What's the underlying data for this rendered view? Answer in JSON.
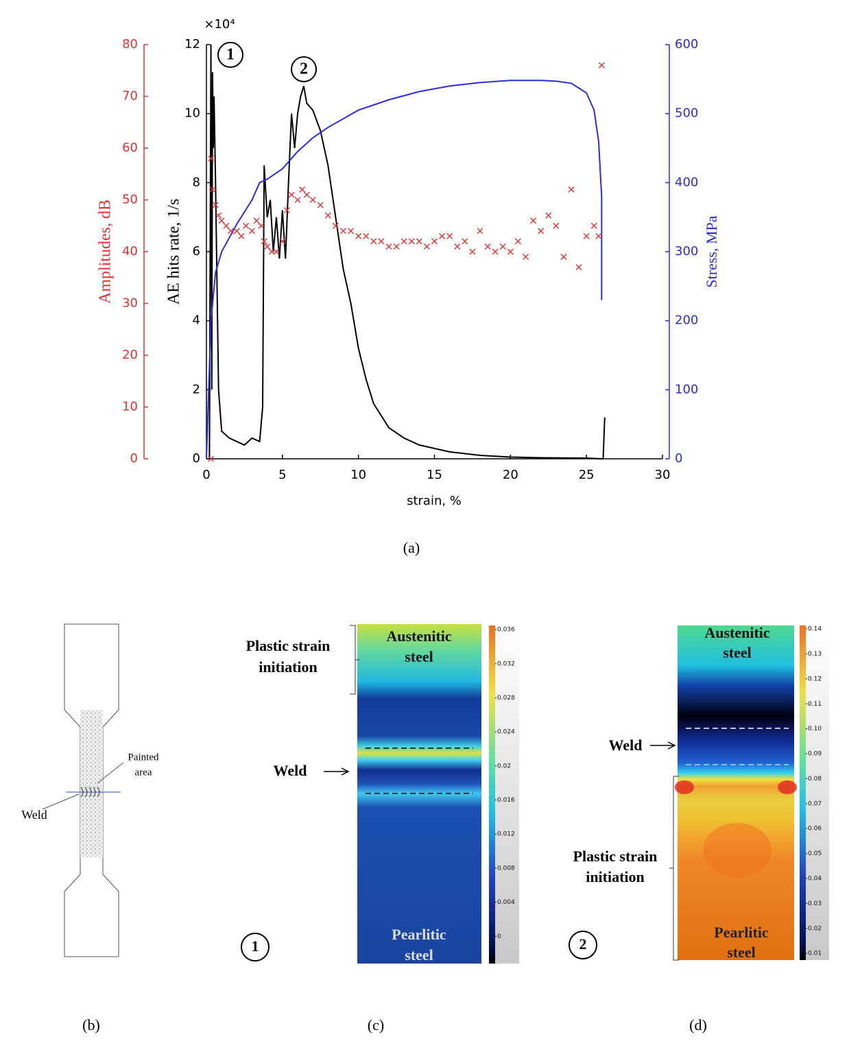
{
  "chart_data": {
    "type": "line",
    "xlabel": "strain, %",
    "ylabel": "AE hits rate, 1/s",
    "y_multiplier": "×10⁴",
    "y2label": "Stress, MPa",
    "y3label": "Amplitudes, dB",
    "xlim": [
      0,
      30
    ],
    "xticks": [
      0,
      5,
      10,
      15,
      20,
      25,
      30
    ],
    "ylim": [
      0,
      12
    ],
    "yticks": [
      0,
      2,
      4,
      6,
      8,
      10,
      12
    ],
    "y2lim": [
      0,
      600
    ],
    "y2ticks": [
      0,
      100,
      200,
      300,
      400,
      500,
      600
    ],
    "y3lim": [
      0,
      80
    ],
    "y3ticks": [
      0,
      10,
      20,
      30,
      40,
      50,
      60,
      70,
      80
    ],
    "annotations": [
      "1",
      "2"
    ],
    "caption": "(a)",
    "series": [
      {
        "type": "line",
        "color": "#000000",
        "x": [
          0.2,
          0.3,
          0.35,
          0.4,
          0.45,
          0.5,
          0.6,
          0.7,
          0.8,
          1.0,
          1.5,
          2.0,
          2.5,
          3.0,
          3.5,
          3.7,
          3.8,
          4.0,
          4.2,
          4.4,
          4.6,
          4.8,
          5.0,
          5.2,
          5.4,
          5.6,
          5.8,
          6.0,
          6.2,
          6.4,
          6.6,
          7.0,
          7.5,
          8.0,
          8.5,
          9.0,
          9.5,
          10,
          10.5,
          11,
          12,
          13,
          14,
          15,
          16,
          18,
          20,
          22,
          25,
          26,
          26.1,
          26.2
        ],
        "values": [
          0,
          12,
          2,
          11.2,
          9,
          10.5,
          8,
          5,
          2,
          0.8,
          0.6,
          0.5,
          0.4,
          0.6,
          0.5,
          1.5,
          8.5,
          7,
          7.5,
          6,
          7,
          5.8,
          7.2,
          5.8,
          8,
          10,
          9,
          10,
          10.5,
          10.8,
          10.3,
          10.1,
          9.5,
          8.5,
          7,
          5.5,
          4.5,
          3.2,
          2.3,
          1.6,
          0.9,
          0.6,
          0.4,
          0.3,
          0.2,
          0.1,
          0.05,
          0.03,
          0.02,
          0,
          0,
          1.2
        ]
      },
      {
        "type": "line",
        "color": "#2a2ae8",
        "axis": "y2",
        "x": [
          0,
          0.3,
          0.6,
          1,
          2,
          3,
          3.5,
          4,
          5,
          6,
          7,
          8,
          10,
          12,
          14,
          16,
          18,
          20,
          22,
          23,
          24,
          25,
          25.5,
          25.8,
          26,
          26
        ],
        "values": [
          0,
          200,
          270,
          300,
          340,
          375,
          400,
          405,
          420,
          445,
          465,
          480,
          505,
          520,
          532,
          540,
          545,
          548,
          548,
          547,
          544,
          530,
          505,
          460,
          380,
          230
        ]
      },
      {
        "type": "scatter",
        "color": "#e83030",
        "axis": "y3",
        "x": [
          0.3,
          0.3,
          0.4,
          0.6,
          0.8,
          1,
          1.3,
          1.6,
          2,
          2.3,
          2.6,
          3,
          3.3,
          3.6,
          3.8,
          4,
          4.3,
          4.6,
          5,
          5.3,
          5.6,
          6,
          6.3,
          6.6,
          7,
          7.5,
          8,
          8.5,
          9,
          9.5,
          10,
          10.5,
          11,
          11.5,
          12,
          12.5,
          13,
          13.5,
          14,
          14.5,
          15,
          15.5,
          16,
          16.5,
          17,
          17.5,
          18,
          18.5,
          19,
          19.5,
          20,
          20.5,
          21,
          21.5,
          22,
          22.5,
          23,
          23.5,
          24,
          24.5,
          25,
          25.5,
          25.8,
          26
        ],
        "values": [
          0,
          58,
          52,
          49,
          47,
          46,
          45,
          44,
          44,
          43,
          45,
          44,
          46,
          45,
          42,
          41,
          40,
          40,
          42,
          48,
          51,
          50,
          52,
          51,
          50,
          49,
          47,
          45,
          44,
          44,
          43,
          43,
          42,
          42,
          41,
          41,
          42,
          42,
          42,
          41,
          42,
          43,
          43,
          41,
          42,
          40,
          44,
          41,
          40,
          41,
          40,
          42,
          39,
          46,
          44,
          47,
          45,
          39,
          52,
          37,
          43,
          45,
          43,
          76
        ]
      }
    ]
  },
  "panel_b": {
    "caption": "(b)",
    "painted": [
      "Painted",
      "area"
    ],
    "weld": "Weld"
  },
  "panel_c": {
    "caption": "(c)",
    "marker": "1",
    "initiation": [
      "Plastic strain",
      "initiation"
    ],
    "weld": "Weld",
    "top": [
      "Austenitic",
      "steel"
    ],
    "bottom": [
      "Pearlitic",
      "steel"
    ],
    "colorbar": {
      "lim": [
        -0.0032,
        0.0365
      ],
      "ticks": [
        0.036,
        0.032,
        0.028,
        0.024,
        0.02,
        0.016,
        0.012,
        0.008,
        0.004,
        0
      ]
    }
  },
  "panel_d": {
    "caption": "(d)",
    "marker": "2",
    "initiation": [
      "Plastic strain",
      "initiation"
    ],
    "weld": "Weld",
    "top": [
      "Austenitic",
      "steel"
    ],
    "bottom": [
      "Pearlitic",
      "steel"
    ],
    "colorbar": {
      "lim": [
        0.0073,
        0.1414
      ],
      "ticks": [
        0.14,
        0.13,
        0.12,
        0.11,
        {
          "value": 0.1,
          "label": "0.10"
        },
        0.09,
        0.08,
        0.07,
        0.06,
        0.05,
        0.04,
        0.03,
        0.02,
        0.01
      ]
    }
  }
}
